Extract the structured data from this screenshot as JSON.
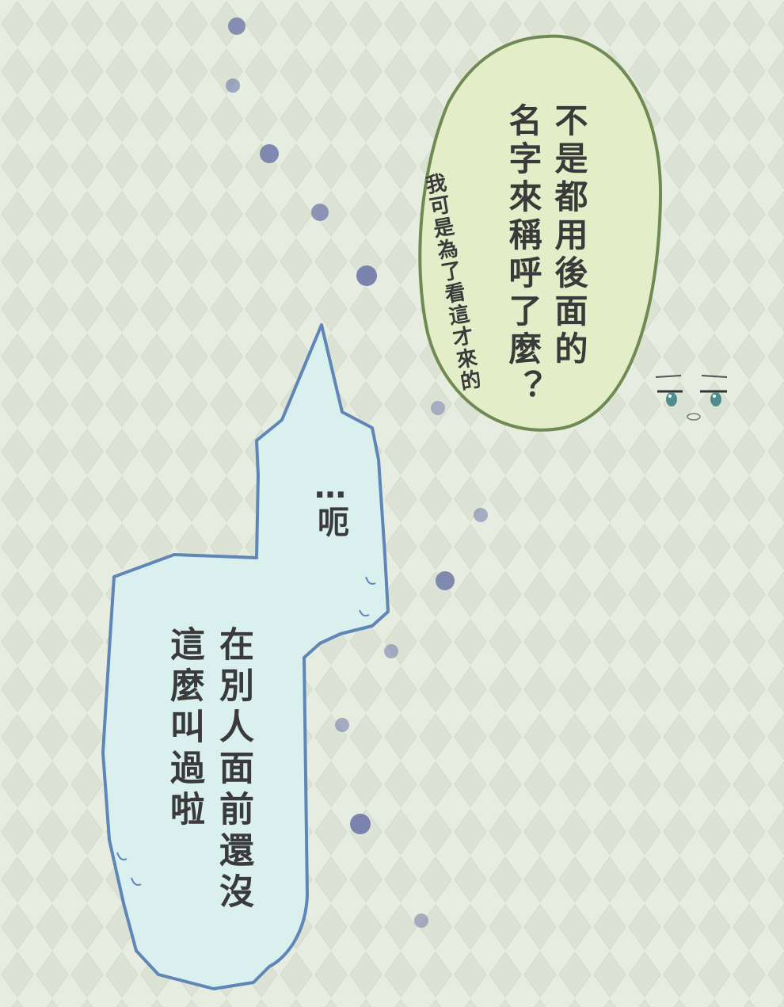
{
  "colors": {
    "background": "#e6ebe0",
    "diamond": "#d9e0d2",
    "green_bubble_fill": "#e3eec9",
    "green_bubble_stroke": "#6f8a52",
    "blue_bubble_fill": "#d9f0ef",
    "blue_bubble_stroke": "#5f86b7",
    "dot": "#6f78a8",
    "text": "#3a3a3a"
  },
  "green_bubble": {
    "line1": "不是都用後面的",
    "line2": "名字來稱呼了麼？"
  },
  "side_remark": {
    "text": "我可是為了看這才來的"
  },
  "blue_bubble": {
    "ellipsis_line": "…呃",
    "line1": "在別人面前還沒",
    "line2": "這麼叫過啦"
  },
  "character_peek": {
    "icon": "peeking-face-icon"
  }
}
